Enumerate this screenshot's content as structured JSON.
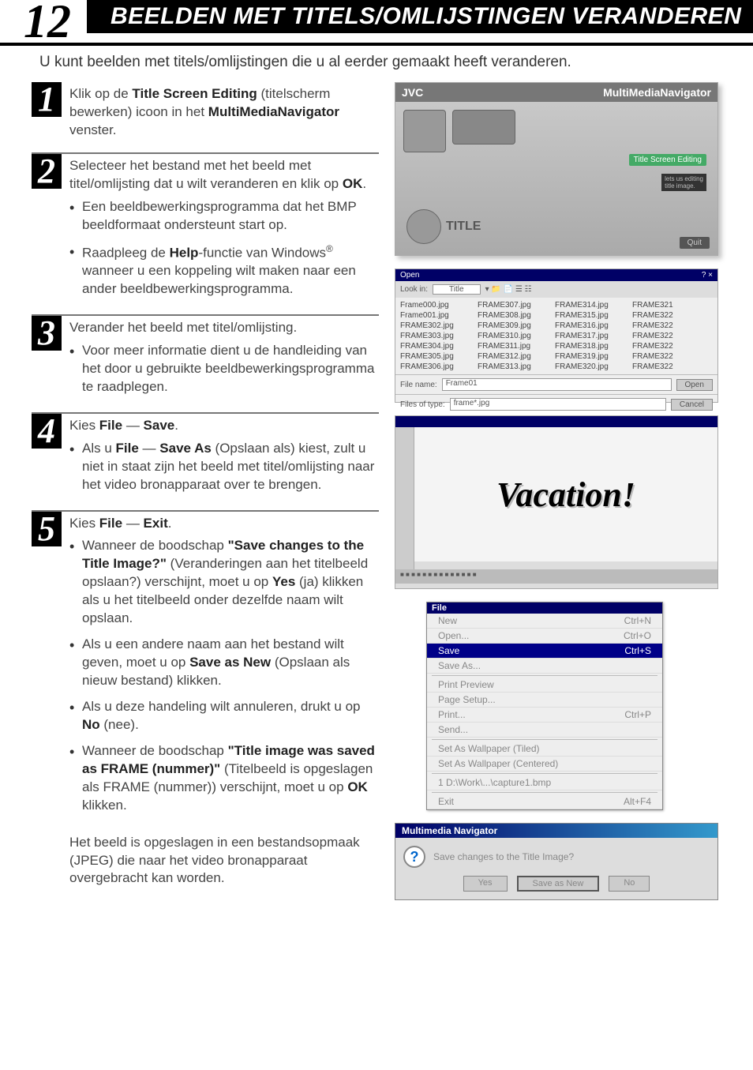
{
  "header": {
    "page_number": "12",
    "title": "BEELDEN MET TITELS/OMLIJSTINGEN VERANDEREN"
  },
  "intro": "U kunt beelden met titels/omlijstingen die u al eerder gemaakt heeft veranderen.",
  "steps": [
    {
      "num": "1",
      "main_pre": "Klik op de ",
      "main_b1": "Title Screen Editing",
      "main_mid": " (titelscherm bewerken) icoon in het ",
      "main_b2": "MultiMediaNavigator",
      "main_post": " venster.",
      "bullets": []
    },
    {
      "num": "2",
      "main_pre": "Selecteer het bestand met het beeld met titel/omlijsting dat u wilt veranderen en klik op ",
      "main_b1": "OK",
      "main_mid": ".",
      "main_b2": "",
      "main_post": "",
      "bullets": [
        "Een beeldbewerkingsprogramma dat het BMP beeldformaat ondersteunt start op.",
        "Raadpleeg de <b>Help</b>-functie van Windows<sup>®</sup> wanneer u een koppeling wilt maken naar een ander beeldbewerkingsprogramma."
      ]
    },
    {
      "num": "3",
      "main_pre": "Verander het beeld met titel/omlijsting.",
      "main_b1": "",
      "main_mid": "",
      "main_b2": "",
      "main_post": "",
      "bullets": [
        "Voor meer informatie dient u de handleiding van het door u gebruikte beeldbewerkingsprogramma te raadplegen."
      ]
    },
    {
      "num": "4",
      "main_pre": "Kies ",
      "main_b1": "File",
      "main_mid": " — ",
      "main_b2": "Save",
      "main_post": ".",
      "bullets": [
        "Als u <b>File</b> — <b>Save As</b> (Opslaan als) kiest, zult u niet in staat zijn het beeld met titel/omlijsting naar het video bronapparaat over te brengen."
      ]
    },
    {
      "num": "5",
      "main_pre": "Kies ",
      "main_b1": "File",
      "main_mid": " — ",
      "main_b2": "Exit",
      "main_post": ".",
      "bullets": [
        "Wanneer de boodschap <b>\"Save changes to the Title Image?\"</b> (Veranderingen aan het titelbeeld opslaan?) verschijnt, moet u op <b>Yes</b> (ja) klikken als u het titelbeeld onder dezelfde naam wilt opslaan.",
        "Als u een andere naam aan het bestand wilt geven, moet u op <b>Save as New</b> (Opslaan als nieuw bestand) klikken.",
        "Als u deze handeling wilt annuleren, drukt u op <b>No</b> (nee).",
        "Wanneer de boodschap <b>\"Title image was saved as FRAME (nummer)\"</b> (Titelbeeld is opgeslagen als FRAME (nummer)) verschijnt, moet u op <b>OK</b> klikken."
      ]
    }
  ],
  "footer_note": "Het beeld is opgeslagen in een bestandsopmaak (JPEG) die naar het video bronapparaat overgebracht kan worden.",
  "jvc": {
    "brand": "JVC",
    "app_title": "MultiMediaNavigator",
    "button_label": "Title Screen Editing",
    "caption_line1": "lets us editing",
    "caption_line2": "title image.",
    "title_label": "TITLE",
    "quit_label": "Quit"
  },
  "file_dialog": {
    "title": "Open",
    "lookin_label": "Look in:",
    "folder": "Title",
    "files": [
      "Frame000.jpg",
      "FRAME307.jpg",
      "FRAME314.jpg",
      "FRAME321",
      "Frame001.jpg",
      "FRAME308.jpg",
      "FRAME315.jpg",
      "FRAME322",
      "FRAME302.jpg",
      "FRAME309.jpg",
      "FRAME316.jpg",
      "FRAME322",
      "FRAME303.jpg",
      "FRAME310.jpg",
      "FRAME317.jpg",
      "FRAME322",
      "FRAME304.jpg",
      "FRAME311.jpg",
      "FRAME318.jpg",
      "FRAME322",
      "FRAME305.jpg",
      "FRAME312.jpg",
      "FRAME319.jpg",
      "FRAME322",
      "FRAME306.jpg",
      "FRAME313.jpg",
      "FRAME320.jpg",
      "FRAME322"
    ],
    "filename_label": "File name:",
    "filename_value": "Frame01",
    "filetype_label": "Files of type:",
    "filetype_value": "frame*.jpg",
    "open_btn": "Open",
    "cancel_btn": "Cancel"
  },
  "vacation": {
    "text": "Vacation!"
  },
  "filemenu": {
    "header": "File",
    "items": [
      {
        "label": "New",
        "shortcut": "Ctrl+N",
        "active": false
      },
      {
        "label": "Open...",
        "shortcut": "Ctrl+O",
        "active": false
      },
      {
        "label": "Save",
        "shortcut": "Ctrl+S",
        "active": true
      },
      {
        "label": "Save As...",
        "shortcut": "",
        "active": false
      },
      {
        "label": "Print Preview",
        "shortcut": "",
        "active": false
      },
      {
        "label": "Page Setup...",
        "shortcut": "",
        "active": false
      },
      {
        "label": "Print...",
        "shortcut": "Ctrl+P",
        "active": false
      },
      {
        "label": "Send...",
        "shortcut": "",
        "active": false
      },
      {
        "label": "Set As Wallpaper (Tiled)",
        "shortcut": "",
        "active": false
      },
      {
        "label": "Set As Wallpaper (Centered)",
        "shortcut": "",
        "active": false
      },
      {
        "label": "1 D:\\Work\\...\\capture1.bmp",
        "shortcut": "",
        "active": false
      },
      {
        "label": "Exit",
        "shortcut": "Alt+F4",
        "active": false
      }
    ]
  },
  "dialog": {
    "title": "Multimedia Navigator",
    "message": "Save changes to the Title Image?",
    "yes": "Yes",
    "save_new": "Save as New",
    "no": "No"
  }
}
